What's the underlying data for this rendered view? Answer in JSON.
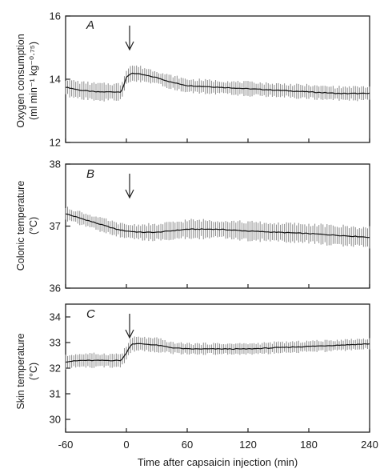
{
  "chart_data": [
    {
      "type": "line",
      "panel_letter": "A",
      "ylabel_line1": "Oxygen consumption",
      "ylabel_line2": "(ml min⁻¹ kg⁻⁰·⁷⁵)",
      "ylim": [
        12,
        16
      ],
      "yticks": [
        "12",
        "14",
        "16"
      ],
      "xlim": [
        -60,
        240
      ],
      "injection_time": 0,
      "series": [
        {
          "x": [
            -60,
            -45,
            -30,
            -15,
            -5,
            0,
            5,
            15,
            30,
            45,
            60,
            90,
            120,
            150,
            180,
            210,
            240
          ],
          "y": [
            13.75,
            13.65,
            13.6,
            13.6,
            13.6,
            14.05,
            14.2,
            14.15,
            14.05,
            13.9,
            13.8,
            13.75,
            13.7,
            13.65,
            13.6,
            13.55,
            13.55
          ],
          "error": [
            0.25,
            0.25,
            0.25,
            0.25,
            0.25,
            0.25,
            0.25,
            0.22,
            0.2,
            0.2,
            0.2,
            0.2,
            0.2,
            0.2,
            0.2,
            0.2,
            0.2
          ]
        }
      ]
    },
    {
      "type": "line",
      "panel_letter": "B",
      "ylabel_line1": "Colonic temperature",
      "ylabel_line2": "(°C)",
      "ylim": [
        36,
        38
      ],
      "yticks": [
        "36",
        "37",
        "38"
      ],
      "xlim": [
        -60,
        240
      ],
      "injection_time": 0,
      "series": [
        {
          "x": [
            -60,
            -50,
            -40,
            -30,
            -20,
            -10,
            0,
            15,
            30,
            60,
            90,
            120,
            150,
            180,
            210,
            240
          ],
          "y": [
            37.2,
            37.15,
            37.1,
            37.05,
            37.0,
            36.95,
            36.92,
            36.9,
            36.9,
            36.95,
            36.95,
            36.92,
            36.9,
            36.88,
            36.85,
            36.82
          ],
          "error": [
            0.1,
            0.1,
            0.1,
            0.1,
            0.1,
            0.1,
            0.1,
            0.12,
            0.12,
            0.14,
            0.14,
            0.14,
            0.14,
            0.14,
            0.15,
            0.15
          ]
        }
      ]
    },
    {
      "type": "line",
      "panel_letter": "C",
      "ylabel_line1": "Skin temperature",
      "ylabel_line2": "(°C)",
      "ylim": [
        29.5,
        34.5
      ],
      "yticks": [
        "30",
        "31",
        "32",
        "33",
        "34"
      ],
      "xlim": [
        -60,
        240
      ],
      "xticks": [
        "-60",
        "0",
        "60",
        "120",
        "180",
        "240"
      ],
      "xlabel": "Time after capsaicin injection (min)",
      "injection_time": 0,
      "series": [
        {
          "x": [
            -60,
            -45,
            -30,
            -15,
            -5,
            0,
            5,
            15,
            30,
            45,
            60,
            90,
            120,
            150,
            180,
            210,
            240
          ],
          "y": [
            32.25,
            32.3,
            32.3,
            32.3,
            32.3,
            32.6,
            32.95,
            32.95,
            32.9,
            32.8,
            32.75,
            32.75,
            32.75,
            32.8,
            32.85,
            32.9,
            32.95
          ],
          "error": [
            0.25,
            0.25,
            0.25,
            0.25,
            0.25,
            0.25,
            0.25,
            0.25,
            0.25,
            0.2,
            0.2,
            0.2,
            0.2,
            0.2,
            0.2,
            0.2,
            0.2
          ]
        }
      ]
    }
  ]
}
